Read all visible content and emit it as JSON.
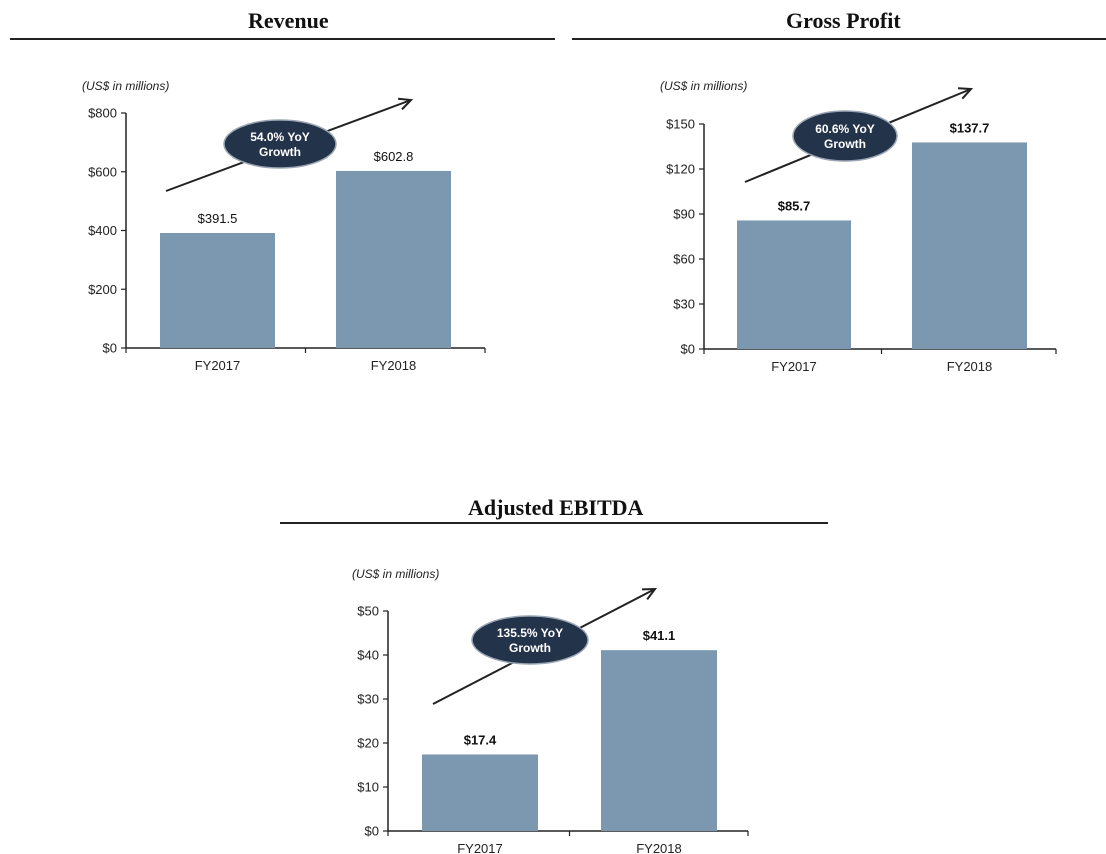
{
  "charts": [
    {
      "title": "Revenue",
      "units": "(US$ in millions)",
      "growth": [
        "54.0% YoY",
        "Growth"
      ],
      "chart_data": {
        "type": "bar",
        "title": "Revenue",
        "categories": [
          "FY2017",
          "FY2018"
        ],
        "values": [
          391.5,
          602.8
        ],
        "value_labels": [
          "$391.5",
          "$602.8"
        ],
        "ylim": [
          0,
          800
        ],
        "yticks": [
          0,
          200,
          400,
          600,
          800
        ],
        "ytick_labels": [
          "$0",
          "$200",
          "$400",
          "$600",
          "$800"
        ],
        "ylabel": "(US$ in millions)",
        "bar_color": "#7b98b0",
        "label_bold": false
      }
    },
    {
      "title": "Gross Profit",
      "units": "(US$ in millions)",
      "growth": [
        "60.6% YoY",
        "Growth"
      ],
      "chart_data": {
        "type": "bar",
        "title": "Gross Profit",
        "categories": [
          "FY2017",
          "FY2018"
        ],
        "values": [
          85.7,
          137.7
        ],
        "value_labels": [
          "$85.7",
          "$137.7"
        ],
        "ylim": [
          0,
          150
        ],
        "yticks": [
          0,
          30,
          60,
          90,
          120,
          150
        ],
        "ytick_labels": [
          "$0",
          "$30",
          "$60",
          "$90",
          "$120",
          "$150"
        ],
        "ylabel": "(US$ in millions)",
        "bar_color": "#7b98b0",
        "label_bold": true
      }
    },
    {
      "title": "Adjusted EBITDA",
      "units": "(US$ in millions)",
      "growth": [
        "135.5% YoY",
        "Growth"
      ],
      "chart_data": {
        "type": "bar",
        "title": "Adjusted EBITDA",
        "categories": [
          "FY2017",
          "FY2018"
        ],
        "values": [
          17.4,
          41.1
        ],
        "value_labels": [
          "$17.4",
          "$41.1"
        ],
        "ylim": [
          0,
          50
        ],
        "yticks": [
          0,
          10,
          20,
          30,
          40,
          50
        ],
        "ytick_labels": [
          "$0",
          "$10",
          "$20",
          "$30",
          "$40",
          "$50"
        ],
        "ylabel": "(US$ in millions)",
        "bar_color": "#7b98b0",
        "label_bold": true
      }
    }
  ],
  "colors": {
    "bar": "#7b98b0",
    "badge": "#233349",
    "badge_text": "#ffffff",
    "axis": "#222222"
  }
}
